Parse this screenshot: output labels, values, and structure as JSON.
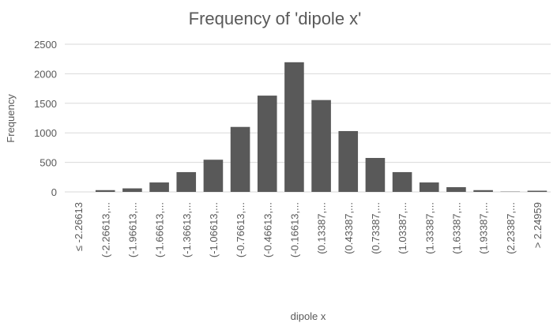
{
  "chart_data": {
    "type": "bar",
    "title": "Frequency of 'dipole x'",
    "xlabel": "dipole x",
    "ylabel": "Frequency",
    "categories": [
      "≤ -2.26613",
      "(-2.26613,...",
      "(-1.96613,...",
      "(-1.66613,...",
      "(-1.36613,...",
      "(-1.06613,...",
      "(-0.76613,...",
      "(-0.46613,...",
      "(-0.16613,...",
      "(0.13387,...",
      "(0.43387,...",
      "(0.73387,...",
      "(1.03387,...",
      "(1.33387,...",
      "(1.63387,...",
      "(1.93387,...",
      "(2.23387,...",
      "> 2.24959"
    ],
    "values": [
      0,
      30,
      60,
      160,
      335,
      545,
      1100,
      1630,
      2195,
      1555,
      1030,
      575,
      335,
      160,
      80,
      30,
      5,
      20
    ],
    "ylim": [
      0,
      2500
    ],
    "yticks": [
      0,
      500,
      1000,
      1500,
      2000,
      2500
    ],
    "grid": true,
    "colors": {
      "bar": "#595959",
      "grid": "#d9d9d9",
      "text": "#595959"
    }
  }
}
